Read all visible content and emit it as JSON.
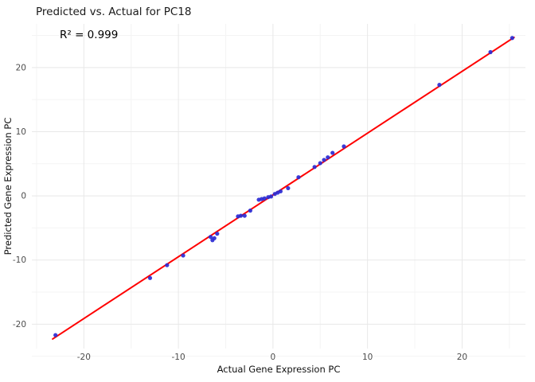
{
  "title": "Predicted vs. Actual for PC18",
  "annotation": "R² = 0.999",
  "chart_data": {
    "type": "scatter",
    "title": "Predicted vs. Actual for PC18",
    "annotation": "R² = 0.999",
    "xlabel": "Actual Gene Expression PC",
    "ylabel": "Predicted Gene Expression PC",
    "xlim": [
      -25.5,
      26.7
    ],
    "ylim": [
      -23.8,
      26.8
    ],
    "xticks": [
      -20,
      -10,
      0,
      10,
      20
    ],
    "yticks": [
      -20,
      -10,
      0,
      10,
      20
    ],
    "xminor": [
      -25,
      -15,
      -5,
      5,
      15,
      25
    ],
    "yminor": [
      -25,
      -15,
      -5,
      5,
      15,
      25
    ],
    "grid": true,
    "legend": "none",
    "point_color": "#2A2AD4",
    "line_color": "#FF0000",
    "major_grid_color": "#e8e8e8",
    "minor_grid_color": "#f4f4f4",
    "points": [
      [
        -23.0,
        -21.7
      ],
      [
        -13.0,
        -12.8
      ],
      [
        -11.2,
        -10.8
      ],
      [
        -9.5,
        -9.3
      ],
      [
        -6.6,
        -6.4
      ],
      [
        -6.4,
        -6.9
      ],
      [
        -6.2,
        -6.6
      ],
      [
        -5.9,
        -5.9
      ],
      [
        -3.7,
        -3.2
      ],
      [
        -3.4,
        -3.1
      ],
      [
        -3.0,
        -3.1
      ],
      [
        -2.4,
        -2.3
      ],
      [
        -1.5,
        -0.6
      ],
      [
        -1.2,
        -0.5
      ],
      [
        -0.9,
        -0.4
      ],
      [
        -0.5,
        -0.2
      ],
      [
        -0.2,
        -0.1
      ],
      [
        0.2,
        0.3
      ],
      [
        0.5,
        0.5
      ],
      [
        0.8,
        0.7
      ],
      [
        1.6,
        1.2
      ],
      [
        2.7,
        2.9
      ],
      [
        4.4,
        4.5
      ],
      [
        5.0,
        5.1
      ],
      [
        5.4,
        5.6
      ],
      [
        5.8,
        6.0
      ],
      [
        6.3,
        6.7
      ],
      [
        7.5,
        7.7
      ],
      [
        17.6,
        17.3
      ],
      [
        23.0,
        22.4
      ],
      [
        25.3,
        24.6
      ]
    ],
    "fit_line": {
      "x1": -23.3,
      "y1": -22.3,
      "x2": 25.5,
      "y2": 24.7
    }
  }
}
